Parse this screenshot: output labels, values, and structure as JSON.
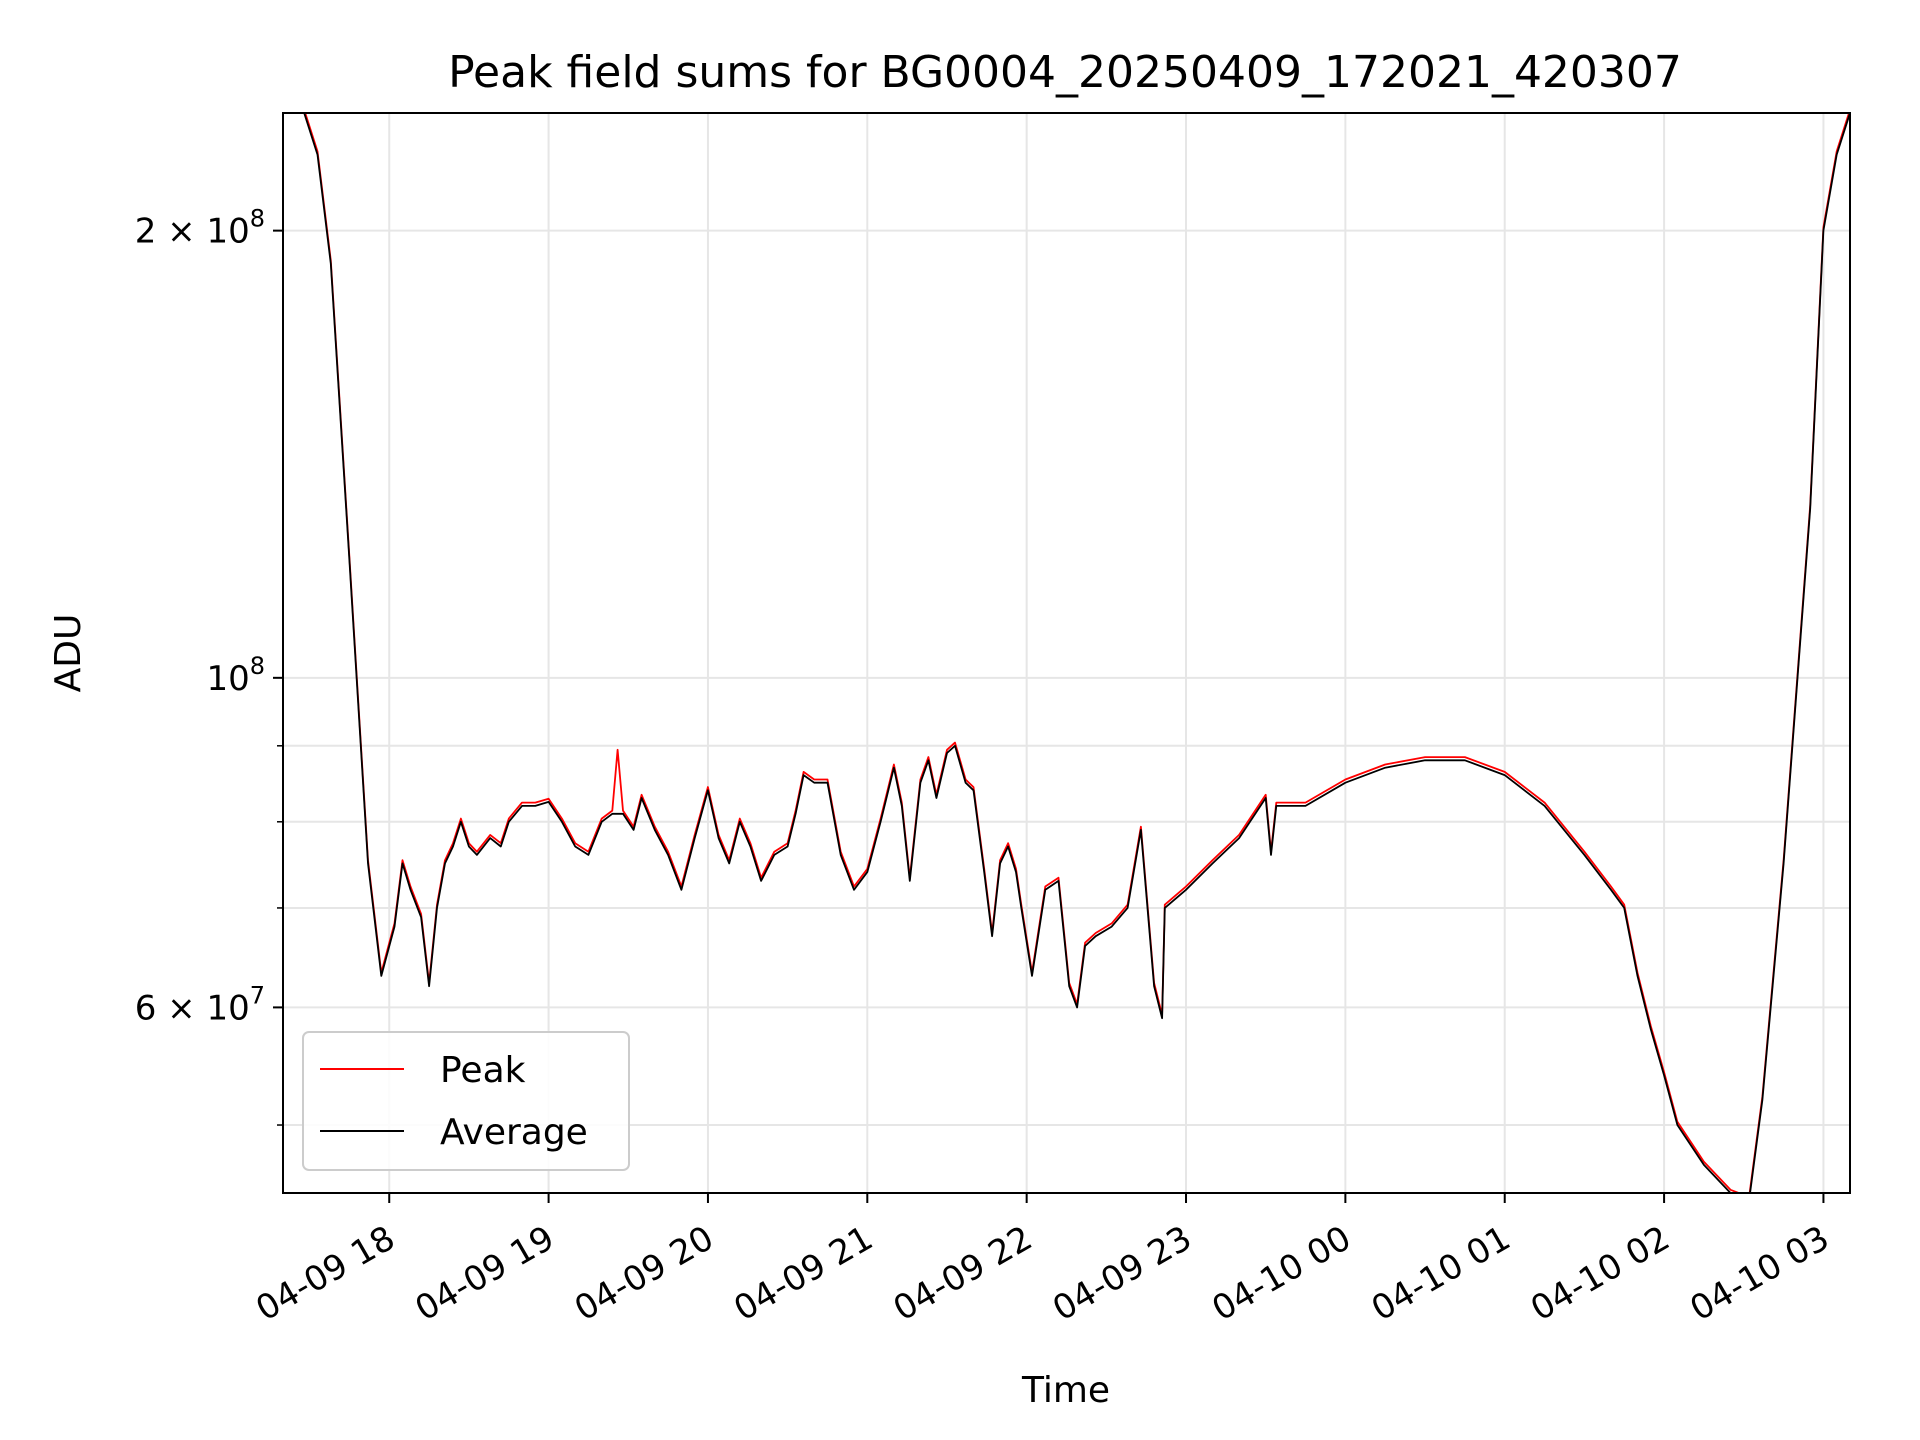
{
  "chart_data": {
    "type": "line",
    "title": "Peak field sums for BG0004_20250409_172021_420307",
    "xlabel": "Time",
    "ylabel": "ADU",
    "y_scale": "log",
    "ylim": [
      45000000,
      240000000
    ],
    "xlim": [
      "2025-04-09 17:20",
      "2025-04-10 03:10"
    ],
    "x_ticks": [
      {
        "value": "2025-04-09 18:00",
        "label": "04-09 18"
      },
      {
        "value": "2025-04-09 19:00",
        "label": "04-09 19"
      },
      {
        "value": "2025-04-09 20:00",
        "label": "04-09 20"
      },
      {
        "value": "2025-04-09 21:00",
        "label": "04-09 21"
      },
      {
        "value": "2025-04-09 22:00",
        "label": "04-09 22"
      },
      {
        "value": "2025-04-09 23:00",
        "label": "04-09 23"
      },
      {
        "value": "2025-04-10 00:00",
        "label": "04-10 00"
      },
      {
        "value": "2025-04-10 01:00",
        "label": "04-10 01"
      },
      {
        "value": "2025-04-10 02:00",
        "label": "04-10 02"
      },
      {
        "value": "2025-04-10 03:00",
        "label": "04-10 03"
      }
    ],
    "y_ticks": [
      {
        "value": 60000000,
        "base": "6 × 10",
        "exp": "7"
      },
      {
        "value": 100000000,
        "base": "10",
        "exp": "8"
      },
      {
        "value": 200000000,
        "base": "2 × 10",
        "exp": "8"
      }
    ],
    "y_minor_ticks": [
      50000000,
      70000000,
      80000000,
      90000000
    ],
    "grid": true,
    "legend_position": "lower-left",
    "series": [
      {
        "name": "Peak",
        "color": "#ff0000",
        "offset": 0.005,
        "x": [
          "2025-04-09 17:20",
          "2025-04-09 17:28",
          "2025-04-09 17:33",
          "2025-04-09 17:38",
          "2025-04-09 17:45",
          "2025-04-09 17:52",
          "2025-04-09 17:57",
          "2025-04-09 18:02",
          "2025-04-09 18:05",
          "2025-04-09 18:08",
          "2025-04-09 18:12",
          "2025-04-09 18:15",
          "2025-04-09 18:18",
          "2025-04-09 18:21",
          "2025-04-09 18:24",
          "2025-04-09 18:27",
          "2025-04-09 18:30",
          "2025-04-09 18:33",
          "2025-04-09 18:38",
          "2025-04-09 18:42",
          "2025-04-09 18:45",
          "2025-04-09 18:50",
          "2025-04-09 18:55",
          "2025-04-09 19:00",
          "2025-04-09 19:05",
          "2025-04-09 19:10",
          "2025-04-09 19:15",
          "2025-04-09 19:20",
          "2025-04-09 19:24",
          "2025-04-09 19:26",
          "2025-04-09 19:28",
          "2025-04-09 19:32",
          "2025-04-09 19:35",
          "2025-04-09 19:40",
          "2025-04-09 19:45",
          "2025-04-09 19:50",
          "2025-04-09 19:55",
          "2025-04-09 20:00",
          "2025-04-09 20:04",
          "2025-04-09 20:08",
          "2025-04-09 20:12",
          "2025-04-09 20:16",
          "2025-04-09 20:20",
          "2025-04-09 20:25",
          "2025-04-09 20:30",
          "2025-04-09 20:33",
          "2025-04-09 20:36",
          "2025-04-09 20:40",
          "2025-04-09 20:45",
          "2025-04-09 20:50",
          "2025-04-09 20:55",
          "2025-04-09 21:00",
          "2025-04-09 21:05",
          "2025-04-09 21:10",
          "2025-04-09 21:13",
          "2025-04-09 21:16",
          "2025-04-09 21:20",
          "2025-04-09 21:23",
          "2025-04-09 21:26",
          "2025-04-09 21:30",
          "2025-04-09 21:33",
          "2025-04-09 21:37",
          "2025-04-09 21:40",
          "2025-04-09 21:44",
          "2025-04-09 21:47",
          "2025-04-09 21:50",
          "2025-04-09 21:53",
          "2025-04-09 21:56",
          "2025-04-09 21:58",
          "2025-04-09 22:02",
          "2025-04-09 22:07",
          "2025-04-09 22:12",
          "2025-04-09 22:16",
          "2025-04-09 22:19",
          "2025-04-09 22:22",
          "2025-04-09 22:26",
          "2025-04-09 22:32",
          "2025-04-09 22:38",
          "2025-04-09 22:43",
          "2025-04-09 22:48",
          "2025-04-09 22:51",
          "2025-04-09 22:52",
          "2025-04-09 23:00",
          "2025-04-09 23:10",
          "2025-04-09 23:20",
          "2025-04-09 23:30",
          "2025-04-09 23:32",
          "2025-04-09 23:34",
          "2025-04-09 23:45",
          "2025-04-10 00:00",
          "2025-04-10 00:15",
          "2025-04-10 00:30",
          "2025-04-10 00:45",
          "2025-04-10 01:00",
          "2025-04-10 01:15",
          "2025-04-10 01:30",
          "2025-04-10 01:40",
          "2025-04-10 01:45",
          "2025-04-10 01:50",
          "2025-04-10 01:55",
          "2025-04-10 02:00",
          "2025-04-10 02:05",
          "2025-04-10 02:15",
          "2025-04-10 02:25",
          "2025-04-10 02:32",
          "2025-04-10 02:37",
          "2025-04-10 02:45",
          "2025-04-10 02:55",
          "2025-04-10 03:00",
          "2025-04-10 03:05",
          "2025-04-10 03:10"
        ],
        "values": [
          240000000,
          240000000,
          225000000,
          190000000,
          120000000,
          75000000,
          63000000,
          68000000,
          75000000,
          72000000,
          69000000,
          62000000,
          70000000,
          75000000,
          77000000,
          80000000,
          77000000,
          76000000,
          78000000,
          77000000,
          80000000,
          82000000,
          82000000,
          82500000,
          80000000,
          77000000,
          76000000,
          80000000,
          81000000,
          89000000,
          81000000,
          79000000,
          83000000,
          79000000,
          76000000,
          72000000,
          78000000,
          84000000,
          78000000,
          75000000,
          80000000,
          77000000,
          73000000,
          76000000,
          77000000,
          81000000,
          86000000,
          85000000,
          85000000,
          76000000,
          72000000,
          74000000,
          80000000,
          87000000,
          82000000,
          73000000,
          85000000,
          88000000,
          83000000,
          89000000,
          90000000,
          85000000,
          84000000,
          74000000,
          67000000,
          75000000,
          77000000,
          74000000,
          70000000,
          63000000,
          72000000,
          73000000,
          62000000,
          60000000,
          66000000,
          67000000,
          68000000,
          70000000,
          79000000,
          62000000,
          59000000,
          70000000,
          72000000,
          75000000,
          78000000,
          83000000,
          76000000,
          82000000,
          82000000,
          85000000,
          87000000,
          88000000,
          88000000,
          86000000,
          82000000,
          76000000,
          72000000,
          70000000,
          63000000,
          58000000,
          54000000,
          50000000,
          47000000,
          45000000,
          44500000,
          52000000,
          75000000,
          130000000,
          200000000,
          225000000,
          240000000
        ]
      },
      {
        "name": "Average",
        "color": "#000000",
        "offset": 0,
        "x": [
          "2025-04-09 17:20",
          "2025-04-09 17:28",
          "2025-04-09 17:33",
          "2025-04-09 17:38",
          "2025-04-09 17:45",
          "2025-04-09 17:52",
          "2025-04-09 17:57",
          "2025-04-09 18:02",
          "2025-04-09 18:05",
          "2025-04-09 18:08",
          "2025-04-09 18:12",
          "2025-04-09 18:15",
          "2025-04-09 18:18",
          "2025-04-09 18:21",
          "2025-04-09 18:24",
          "2025-04-09 18:27",
          "2025-04-09 18:30",
          "2025-04-09 18:33",
          "2025-04-09 18:38",
          "2025-04-09 18:42",
          "2025-04-09 18:45",
          "2025-04-09 18:50",
          "2025-04-09 18:55",
          "2025-04-09 19:00",
          "2025-04-09 19:05",
          "2025-04-09 19:10",
          "2025-04-09 19:15",
          "2025-04-09 19:20",
          "2025-04-09 19:24",
          "2025-04-09 19:26",
          "2025-04-09 19:28",
          "2025-04-09 19:32",
          "2025-04-09 19:35",
          "2025-04-09 19:40",
          "2025-04-09 19:45",
          "2025-04-09 19:50",
          "2025-04-09 19:55",
          "2025-04-09 20:00",
          "2025-04-09 20:04",
          "2025-04-09 20:08",
          "2025-04-09 20:12",
          "2025-04-09 20:16",
          "2025-04-09 20:20",
          "2025-04-09 20:25",
          "2025-04-09 20:30",
          "2025-04-09 20:33",
          "2025-04-09 20:36",
          "2025-04-09 20:40",
          "2025-04-09 20:45",
          "2025-04-09 20:50",
          "2025-04-09 20:55",
          "2025-04-09 21:00",
          "2025-04-09 21:05",
          "2025-04-09 21:10",
          "2025-04-09 21:13",
          "2025-04-09 21:16",
          "2025-04-09 21:20",
          "2025-04-09 21:23",
          "2025-04-09 21:26",
          "2025-04-09 21:30",
          "2025-04-09 21:33",
          "2025-04-09 21:37",
          "2025-04-09 21:40",
          "2025-04-09 21:44",
          "2025-04-09 21:47",
          "2025-04-09 21:50",
          "2025-04-09 21:53",
          "2025-04-09 21:56",
          "2025-04-09 21:58",
          "2025-04-09 22:02",
          "2025-04-09 22:07",
          "2025-04-09 22:12",
          "2025-04-09 22:16",
          "2025-04-09 22:19",
          "2025-04-09 22:22",
          "2025-04-09 22:26",
          "2025-04-09 22:32",
          "2025-04-09 22:38",
          "2025-04-09 22:43",
          "2025-04-09 22:48",
          "2025-04-09 22:51",
          "2025-04-09 22:52",
          "2025-04-09 23:00",
          "2025-04-09 23:10",
          "2025-04-09 23:20",
          "2025-04-09 23:30",
          "2025-04-09 23:32",
          "2025-04-09 23:34",
          "2025-04-09 23:45",
          "2025-04-10 00:00",
          "2025-04-10 00:15",
          "2025-04-10 00:30",
          "2025-04-10 00:45",
          "2025-04-10 01:00",
          "2025-04-10 01:15",
          "2025-04-10 01:30",
          "2025-04-10 01:40",
          "2025-04-10 01:45",
          "2025-04-10 01:50",
          "2025-04-10 01:55",
          "2025-04-10 02:00",
          "2025-04-10 02:05",
          "2025-04-10 02:15",
          "2025-04-10 02:25",
          "2025-04-10 02:32",
          "2025-04-10 02:37",
          "2025-04-10 02:45",
          "2025-04-10 02:55",
          "2025-04-10 03:00",
          "2025-04-10 03:05",
          "2025-04-10 03:10"
        ],
        "values": [
          240000000,
          240000000,
          225000000,
          190000000,
          120000000,
          75000000,
          63000000,
          68000000,
          75000000,
          72000000,
          69000000,
          62000000,
          70000000,
          75000000,
          77000000,
          80000000,
          77000000,
          76000000,
          78000000,
          77000000,
          80000000,
          82000000,
          82000000,
          82500000,
          80000000,
          77000000,
          76000000,
          80000000,
          81000000,
          81000000,
          81000000,
          79000000,
          83000000,
          79000000,
          76000000,
          72000000,
          78000000,
          84000000,
          78000000,
          75000000,
          80000000,
          77000000,
          73000000,
          76000000,
          77000000,
          81000000,
          86000000,
          85000000,
          85000000,
          76000000,
          72000000,
          74000000,
          80000000,
          87000000,
          82000000,
          73000000,
          85000000,
          88000000,
          83000000,
          89000000,
          90000000,
          85000000,
          84000000,
          74000000,
          67000000,
          75000000,
          77000000,
          74000000,
          70000000,
          63000000,
          72000000,
          73000000,
          62000000,
          60000000,
          66000000,
          67000000,
          68000000,
          70000000,
          79000000,
          62000000,
          59000000,
          70000000,
          72000000,
          75000000,
          78000000,
          83000000,
          76000000,
          82000000,
          82000000,
          85000000,
          87000000,
          88000000,
          88000000,
          86000000,
          82000000,
          76000000,
          72000000,
          70000000,
          63000000,
          58000000,
          54000000,
          50000000,
          47000000,
          45000000,
          44500000,
          52000000,
          75000000,
          130000000,
          200000000,
          225000000,
          240000000
        ]
      }
    ]
  }
}
